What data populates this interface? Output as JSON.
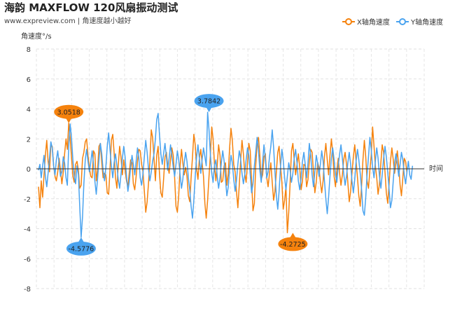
{
  "header": {
    "title": "海韵 MAXFLOW 120风扇振动测试",
    "subtitle": "www.expreview.com | 角速度越小越好"
  },
  "chart_data": {
    "type": "line",
    "title": "海韵 MAXFLOW 120风扇振动测试",
    "subtitle": "www.expreview.com | 角速度越小越好",
    "ylabel": "角速度°/s",
    "xlabel": "时间",
    "ylim": [
      -8,
      8
    ],
    "yticks": [
      -8,
      -6,
      -4,
      -2,
      0,
      2,
      4,
      6,
      8
    ],
    "grid": true,
    "legend": "top-right",
    "n_points": 280,
    "series": [
      {
        "name": "X轴角速度",
        "color": "#f5820d",
        "values": [
          -1.2,
          -2.6,
          -0.8,
          -1.9,
          -0.4,
          0.9,
          1.9,
          0.5,
          -0.2,
          1.6,
          1.5,
          0.2,
          -0.5,
          -0.8,
          -0.2,
          0.7,
          -0.1,
          -1.0,
          -0.2,
          1.0,
          2.0,
          1.3,
          3.05,
          2.1,
          0.8,
          -0.5,
          -0.9,
          0.3,
          0.5,
          -0.1,
          -1.3,
          -1.1,
          0.7,
          1.1,
          1.8,
          2.0,
          0.9,
          0.1,
          -0.5,
          -0.6,
          1.2,
          1.0,
          -0.8,
          0.0,
          1.5,
          1.7,
          0.4,
          -0.6,
          -0.3,
          -0.4,
          -1.6,
          -1.7,
          -0.1,
          1.9,
          2.3,
          1.1,
          -0.6,
          -1.3,
          0.2,
          1.5,
          0.8,
          -0.4,
          0.6,
          -0.1,
          -0.8,
          -1.2,
          -0.3,
          0.6,
          0.4,
          -1.0,
          -1.4,
          -0.5,
          0.5,
          1.3,
          1.2,
          0.3,
          -0.2,
          -1.5,
          -2.9,
          -2.2,
          -1.0,
          0.5,
          2.6,
          2.1,
          0.7,
          -0.8,
          0.9,
          1.5,
          -0.3,
          -1.6,
          -1.9,
          -0.7,
          0.8,
          1.1,
          0.2,
          -0.3,
          0.6,
          1.4,
          0.9,
          -0.6,
          -2.5,
          -2.9,
          -1.8,
          0.2,
          1.3,
          0.4,
          -0.4,
          0.1,
          -0.5,
          -1.8,
          -2.2,
          -0.6,
          0.8,
          2.3,
          1.6,
          0.0,
          -0.7,
          0.7,
          1.3,
          0.4,
          -0.5,
          -2.3,
          -3.3,
          -2.1,
          -0.5,
          0.9,
          2.8,
          2.0,
          0.3,
          -0.8,
          0.2,
          1.6,
          0.9,
          -0.9,
          -0.8,
          0.2,
          0.4,
          -1.1,
          -0.3,
          1.4,
          2.7,
          1.9,
          0.3,
          -0.2,
          -1.5,
          -2.6,
          -1.1,
          0.5,
          1.9,
          1.0,
          -0.3,
          -0.9,
          0.4,
          1.7,
          1.2,
          -0.8,
          -2.8,
          -2.3,
          0.2,
          1.7,
          2.1,
          0.9,
          -0.7,
          -0.4,
          0.8,
          1.0,
          -0.6,
          -1.2,
          -0.3,
          0.4,
          -0.9,
          -2.1,
          -1.5,
          -0.2,
          1.1,
          1.5,
          0.2,
          -0.9,
          -2.7,
          -2.1,
          -1.2,
          -4.27,
          -2.9,
          -1.0,
          1.2,
          1.7,
          0.6,
          -0.4,
          0.3,
          1.0,
          0.1,
          -1.4,
          -0.8,
          0.3,
          0.2,
          -1.2,
          -0.7,
          0.5,
          1.3,
          1.1,
          -0.2,
          -1.6,
          -0.9,
          0.4,
          0.1,
          -0.9,
          -1.6,
          -0.8,
          0.8,
          1.7,
          0.6,
          -0.4,
          0.9,
          2.0,
          1.1,
          -0.5,
          -1.2,
          -0.1,
          0.7,
          -0.3,
          -1.1,
          -0.4,
          0.6,
          1.1,
          0.3,
          -0.9,
          -2.2,
          -1.5,
          -0.3,
          0.8,
          1.6,
          0.5,
          -0.6,
          -1.8,
          -2.5,
          -1.1,
          0.6,
          1.9,
          0.8,
          -0.8,
          -1.3,
          -0.1,
          0.9,
          2.8,
          1.5,
          0.2,
          -0.6,
          -1.7,
          -1.0,
          0.4,
          1.6,
          1.1,
          -0.2,
          -1.6,
          -2.3,
          -1.0,
          0.5,
          1.4,
          0.6,
          -0.3,
          0.4,
          1.2,
          0.2,
          -1.1,
          -1.8,
          -0.6,
          0.7,
          0.5,
          -0.3
        ]
      },
      {
        "name": "Y轴角速度",
        "color": "#4aa3ef",
        "values": [
          -0.1,
          0.3,
          -0.6,
          0.2,
          0.9,
          -0.5,
          -1.2,
          -0.3,
          0.7,
          1.8,
          1.4,
          0.2,
          -0.4,
          0.6,
          1.2,
          0.3,
          -0.5,
          -0.2,
          0.8,
          0.4,
          -0.6,
          -1.1,
          1.5,
          3.0,
          2.1,
          0.6,
          -0.5,
          -1.0,
          0.2,
          -0.4,
          -2.5,
          -4.58,
          -3.2,
          -1.0,
          0.6,
          1.3,
          0.5,
          -0.2,
          0.4,
          1.2,
          0.3,
          -0.8,
          -1.7,
          -0.6,
          0.6,
          1.7,
          1.0,
          -0.1,
          -0.8,
          0.1,
          1.5,
          2.4,
          1.3,
          0.2,
          -0.6,
          0.4,
          1.0,
          0.2,
          -0.7,
          -1.3,
          -0.4,
          0.7,
          1.5,
          0.8,
          -0.5,
          -1.5,
          -0.9,
          0.1,
          0.9,
          0.3,
          -0.4,
          0.5,
          1.4,
          0.7,
          -0.6,
          -1.1,
          -0.3,
          0.8,
          1.9,
          1.1,
          0.0,
          -0.8,
          -0.2,
          0.5,
          1.0,
          2.0,
          3.3,
          3.7,
          2.3,
          1.0,
          0.3,
          1.0,
          1.7,
          0.8,
          -0.1,
          0.7,
          1.6,
          0.9,
          0.1,
          -0.5,
          0.3,
          1.2,
          0.6,
          -0.4,
          -1.3,
          -0.7,
          0.4,
          1.1,
          0.5,
          -0.6,
          -1.4,
          -2.5,
          -3.3,
          -2.1,
          -0.5,
          0.8,
          1.6,
          0.7,
          -0.3,
          0.6,
          1.4,
          0.8,
          0.2,
          3.78,
          2.6,
          1.0,
          -0.3,
          -0.9,
          0.2,
          0.6,
          -0.5,
          -1.3,
          -0.6,
          0.4,
          1.2,
          0.5,
          -0.7,
          -1.8,
          -1.2,
          0.0,
          0.9,
          0.4,
          -0.7,
          -1.5,
          -0.8,
          0.3,
          1.2,
          0.7,
          -0.3,
          -1.0,
          -0.4,
          0.6,
          1.4,
          0.9,
          -0.4,
          -1.6,
          -1.0,
          0.2,
          1.1,
          2.1,
          1.2,
          -0.1,
          -0.9,
          0.5,
          1.6,
          0.6,
          -0.6,
          -0.2,
          0.8,
          1.5,
          2.6,
          1.4,
          -0.2,
          -1.8,
          -2.7,
          -1.5,
          0.1,
          1.3,
          0.6,
          -0.6,
          -1.4,
          -0.5,
          0.4,
          -0.1,
          -0.9,
          -0.3,
          0.7,
          1.3,
          0.4,
          -0.8,
          -1.4,
          -0.6,
          0.5,
          1.1,
          0.3,
          -0.6,
          0.4,
          1.7,
          0.9,
          -0.4,
          -1.2,
          -0.2,
          0.9,
          0.4,
          -0.5,
          0.3,
          1.2,
          0.5,
          -0.8,
          -2.0,
          -3.0,
          -1.9,
          -0.5,
          0.7,
          1.4,
          0.6,
          -0.4,
          -0.9,
          0.2,
          1.0,
          1.6,
          0.7,
          -0.3,
          -1.1,
          -0.5,
          0.4,
          1.1,
          0.3,
          -0.8,
          -1.6,
          -0.7,
          0.5,
          1.3,
          0.6,
          -0.3,
          -1.4,
          -2.8,
          -3.1,
          -1.9,
          -0.4,
          0.8,
          2.1,
          1.3,
          0.1,
          -0.6,
          0.5,
          1.4,
          0.7,
          -0.5,
          -1.3,
          -0.4,
          0.7,
          1.5,
          0.8,
          -0.2,
          -1.4,
          -2.6,
          -2.1,
          -0.8,
          0.4,
          1.0,
          0.3,
          -0.5,
          0.3,
          1.1,
          0.6,
          -0.4,
          -1.0,
          -0.2,
          0.5,
          -0.4,
          -0.7,
          0.2
        ]
      }
    ],
    "annotations": [
      {
        "series": 0,
        "index": 22,
        "label": "3.0518",
        "value": 3.0518,
        "kind": "max"
      },
      {
        "series": 0,
        "index": 185,
        "label": "-4.2725",
        "value": -4.2725,
        "kind": "min"
      },
      {
        "series": 1,
        "index": 124,
        "label": "3.7842",
        "value": 3.7842,
        "kind": "max"
      },
      {
        "series": 1,
        "index": 31,
        "label": "-4.5776",
        "value": -4.5776,
        "kind": "min"
      }
    ]
  }
}
